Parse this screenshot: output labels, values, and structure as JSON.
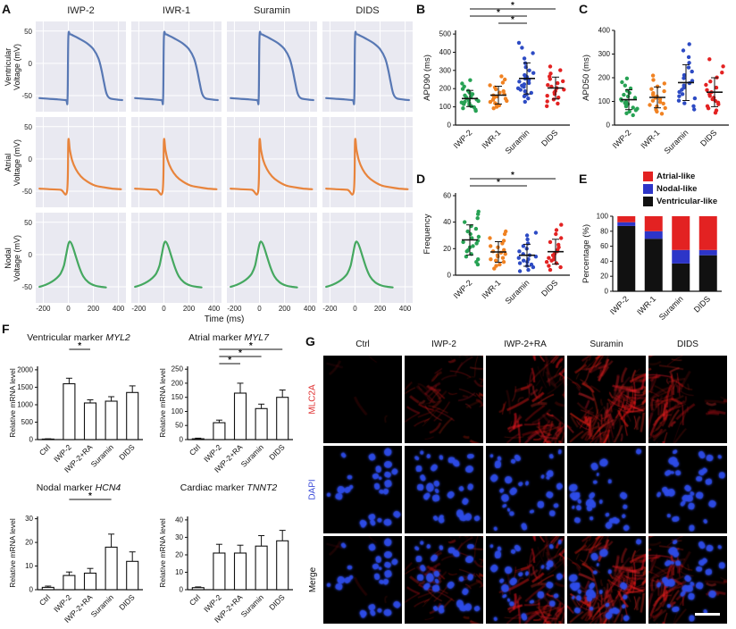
{
  "figure": {
    "background": "#ffffff"
  },
  "panelF": {
    "label": "F"
  },
  "panelG": {
    "label": "G",
    "columns": [
      "Ctrl",
      "IWP-2",
      "IWP-2+RA",
      "Suramin",
      "DIDS"
    ],
    "rows": [
      {
        "label": "MLC2A",
        "color": "#e03030",
        "channels": [
          "red"
        ]
      },
      {
        "label": "DAPI",
        "color": "#3b4bd8",
        "channels": [
          "blue"
        ]
      },
      {
        "label": "Merge",
        "color": "#111111",
        "channels": [
          "red",
          "blue"
        ]
      }
    ],
    "red_intensity": [
      0.05,
      0.6,
      0.9,
      0.95,
      0.75
    ],
    "nuclei_density": [
      0.85,
      1,
      1,
      1,
      1
    ],
    "scale_bar": true
  },
  "chart_data": [
    {
      "id": "A",
      "type": "line",
      "panel_label": "A",
      "columns": [
        "IWP-2",
        "IWR-1",
        "Suramin",
        "DIDS"
      ],
      "rows": [
        "Ventricular",
        "Atrial",
        "Nodal"
      ],
      "row_ylabel": "Voltage (mV)",
      "xlabel": "Time (ms)",
      "xticks": [
        -200,
        0,
        200,
        400
      ],
      "yticks": [
        50,
        0,
        -50
      ],
      "xlim": [
        -260,
        460
      ],
      "ylim": [
        -75,
        65
      ],
      "series": [
        {
          "row": "Ventricular",
          "color": "#5878b4",
          "points": [
            [
              -230,
              -54
            ],
            [
              -150,
              -55
            ],
            [
              -80,
              -56
            ],
            [
              -20,
              -57
            ],
            [
              -6,
              -56
            ],
            [
              0,
              40
            ],
            [
              14,
              45
            ],
            [
              40,
              43
            ],
            [
              90,
              38
            ],
            [
              150,
              31
            ],
            [
              200,
              22
            ],
            [
              240,
              8
            ],
            [
              265,
              -10
            ],
            [
              285,
              -30
            ],
            [
              305,
              -47
            ],
            [
              330,
              -54
            ],
            [
              380,
              -56
            ],
            [
              430,
              -57
            ]
          ]
        },
        {
          "row": "Atrial",
          "color": "#e8843c",
          "points": [
            [
              -230,
              -46
            ],
            [
              -150,
              -47
            ],
            [
              -60,
              -48
            ],
            [
              -10,
              -50
            ],
            [
              0,
              28
            ],
            [
              12,
              14
            ],
            [
              30,
              -2
            ],
            [
              60,
              -16
            ],
            [
              100,
              -27
            ],
            [
              150,
              -35
            ],
            [
              210,
              -41
            ],
            [
              280,
              -44
            ],
            [
              350,
              -46
            ],
            [
              420,
              -47
            ]
          ]
        },
        {
          "row": "Nodal",
          "color": "#45a860",
          "points": [
            [
              -230,
              -50
            ],
            [
              -180,
              -47
            ],
            [
              -130,
              -42
            ],
            [
              -90,
              -36
            ],
            [
              -60,
              -29
            ],
            [
              -35,
              -17
            ],
            [
              -15,
              2
            ],
            [
              0,
              16
            ],
            [
              14,
              20
            ],
            [
              34,
              13
            ],
            [
              60,
              -3
            ],
            [
              90,
              -21
            ],
            [
              120,
              -34
            ],
            [
              160,
              -43
            ],
            [
              210,
              -48
            ],
            [
              260,
              -50
            ],
            [
              300,
              -51
            ]
          ]
        }
      ]
    },
    {
      "id": "B",
      "type": "scatter",
      "panel_label": "B",
      "ylabel": "APD90 (ms)",
      "ylim": [
        0,
        520
      ],
      "yticks": [
        0,
        100,
        200,
        300,
        400,
        500
      ],
      "categories": [
        "IWP-2",
        "IWR-1",
        "Suramin",
        "DIDS"
      ],
      "colors": [
        "#27a254",
        "#f08222",
        "#2d4bc4",
        "#e32222"
      ],
      "groups": [
        [
          78,
          85,
          92,
          98,
          104,
          110,
          115,
          120,
          124,
          128,
          132,
          136,
          141,
          146,
          151,
          157,
          163,
          170,
          178,
          188,
          198,
          212,
          228,
          247
        ],
        [
          92,
          100,
          108,
          114,
          120,
          127,
          133,
          139,
          145,
          151,
          157,
          163,
          170,
          178,
          186,
          196,
          207,
          219,
          233,
          250,
          268
        ],
        [
          128,
          146,
          158,
          168,
          177,
          186,
          194,
          202,
          210,
          217,
          224,
          231,
          239,
          247,
          255,
          264,
          274,
          286,
          300,
          318,
          340,
          366,
          395,
          425,
          452
        ],
        [
          104,
          118,
          130,
          141,
          151,
          161,
          170,
          179,
          187,
          195,
          203,
          211,
          220,
          230,
          241,
          253,
          267,
          283,
          301,
          322
        ]
      ],
      "sig": [
        {
          "a": 0,
          "b": 3,
          "label": "*"
        },
        {
          "a": 0,
          "b": 2,
          "label": "*"
        },
        {
          "a": 1,
          "b": 2,
          "label": "*"
        }
      ]
    },
    {
      "id": "C",
      "type": "scatter",
      "panel_label": "C",
      "ylabel": "APD50 (ms)",
      "ylim": [
        0,
        400
      ],
      "yticks": [
        0,
        100,
        200,
        300,
        400
      ],
      "categories": [
        "IWP-2",
        "IWR-1",
        "Suramin",
        "DIDS"
      ],
      "colors": [
        "#27a254",
        "#f08222",
        "#2d4bc4",
        "#e32222"
      ],
      "groups": [
        [
          42,
          50,
          57,
          63,
          69,
          74,
          79,
          84,
          89,
          94,
          99,
          104,
          109,
          115,
          121,
          128,
          136,
          145,
          155,
          167,
          181,
          197
        ],
        [
          48,
          57,
          65,
          72,
          79,
          85,
          91,
          97,
          103,
          109,
          115,
          121,
          128,
          135,
          143,
          152,
          163,
          176,
          191,
          209
        ],
        [
          66,
          80,
          92,
          103,
          113,
          122,
          131,
          140,
          149,
          158,
          167,
          177,
          187,
          198,
          211,
          226,
          243,
          263,
          287,
          315,
          342
        ],
        [
          52,
          62,
          71,
          80,
          88,
          95,
          102,
          109,
          116,
          123,
          131,
          139,
          148,
          158,
          170,
          184,
          201,
          222,
          248,
          278
        ]
      ],
      "sig": []
    },
    {
      "id": "D",
      "type": "scatter",
      "panel_label": "D",
      "ylabel": "Frequency",
      "ylim": [
        0,
        62
      ],
      "yticks": [
        0,
        20,
        40,
        60
      ],
      "categories": [
        "IWP-2",
        "IWR-1",
        "Suramin",
        "DIDS"
      ],
      "colors": [
        "#27a254",
        "#f08222",
        "#2d4bc4",
        "#e32222"
      ],
      "groups": [
        [
          8,
          10,
          12,
          14,
          16,
          18,
          19,
          21,
          22,
          24,
          25,
          26,
          28,
          29,
          31,
          33,
          35,
          37,
          40,
          43,
          46,
          48
        ],
        [
          5,
          7,
          8,
          10,
          11,
          12,
          13,
          14,
          15,
          16,
          17,
          18,
          19,
          21,
          22,
          24,
          26,
          28,
          31,
          33
        ],
        [
          3,
          4,
          6,
          7,
          8,
          9,
          10,
          11,
          12,
          13,
          14,
          15,
          16,
          18,
          20,
          22,
          24,
          27,
          30,
          32
        ],
        [
          4,
          6,
          7,
          9,
          10,
          11,
          12,
          13,
          14,
          15,
          16,
          18,
          19,
          21,
          23,
          25,
          28,
          31,
          34,
          38
        ]
      ],
      "sig": [
        {
          "a": 0,
          "b": 3,
          "label": "*"
        },
        {
          "a": 0,
          "b": 2,
          "label": "*"
        }
      ]
    },
    {
      "id": "E",
      "type": "stacked_bar",
      "panel_label": "E",
      "ylabel": "Percentage (%)",
      "ylim": [
        0,
        100
      ],
      "yticks": [
        0,
        20,
        40,
        60,
        80,
        100
      ],
      "categories": [
        "IWP-2",
        "IWR-1",
        "Suramin",
        "DIDS"
      ],
      "legend": [
        {
          "label": "Atrial-like",
          "color": "#e32222"
        },
        {
          "label": "Nodal-like",
          "color": "#2d35c8"
        },
        {
          "label": "Ventricular-like",
          "color": "#111111"
        }
      ],
      "series": [
        {
          "name": "Ventricular-like",
          "color": "#111111",
          "values": [
            87,
            70,
            37,
            48
          ]
        },
        {
          "name": "Nodal-like",
          "color": "#2d35c8",
          "values": [
            5,
            10,
            18,
            7
          ]
        },
        {
          "name": "Atrial-like",
          "color": "#e32222",
          "values": [
            8,
            20,
            45,
            45
          ]
        }
      ]
    },
    {
      "id": "F1",
      "type": "bar",
      "title_prefix": "Ventricular marker ",
      "gene": "MYL2",
      "ylabel": "Relative mRNA level",
      "ylim": [
        0,
        2100
      ],
      "yticks": [
        0,
        500,
        1000,
        1500,
        2000
      ],
      "categories": [
        "Ctrl",
        "IWP-2",
        "IWP-2+RA",
        "Suramin",
        "DIDS"
      ],
      "values": [
        15,
        1600,
        1050,
        1100,
        1350
      ],
      "errors": [
        8,
        160,
        90,
        130,
        190
      ],
      "sig": [
        {
          "a": 1,
          "b": 2,
          "label": "*"
        }
      ]
    },
    {
      "id": "F2",
      "type": "bar",
      "title_prefix": "Atrial marker ",
      "gene": "MYL7",
      "ylabel": "Relative mRNA level",
      "ylim": [
        0,
        260
      ],
      "yticks": [
        0,
        50,
        100,
        150,
        200,
        250
      ],
      "categories": [
        "Ctrl",
        "IWP-2",
        "IWP-2+RA",
        "Suramin",
        "DIDS"
      ],
      "values": [
        3,
        60,
        165,
        110,
        150
      ],
      "errors": [
        2,
        9,
        35,
        16,
        26
      ],
      "sig": [
        {
          "a": 1,
          "b": 4,
          "label": "*"
        },
        {
          "a": 1,
          "b": 3,
          "label": "*"
        },
        {
          "a": 1,
          "b": 2,
          "label": "*"
        }
      ]
    },
    {
      "id": "F3",
      "type": "bar",
      "title_prefix": "Nodal marker ",
      "gene": "HCN4",
      "ylabel": "Relative mRNA level",
      "ylim": [
        0,
        31
      ],
      "yticks": [
        0,
        10,
        20,
        30
      ],
      "categories": [
        "Ctrl",
        "IWP-2",
        "IWP-2+RA",
        "Suramin",
        "DIDS"
      ],
      "values": [
        1,
        6,
        7,
        18,
        12
      ],
      "errors": [
        0.5,
        1.5,
        2,
        5.5,
        4
      ],
      "sig": [
        {
          "a": 1,
          "b": 3,
          "label": "*"
        }
      ]
    },
    {
      "id": "F4",
      "type": "bar",
      "title_prefix": "Cardiac marker ",
      "gene": "TNNT2",
      "ylabel": "Relative mRNA level",
      "ylim": [
        0,
        42
      ],
      "yticks": [
        0,
        10,
        20,
        30,
        40
      ],
      "categories": [
        "Ctrl",
        "IWP-2",
        "IWP-2+RA",
        "Suramin",
        "DIDS"
      ],
      "values": [
        1.2,
        21,
        21,
        25,
        28
      ],
      "errors": [
        0.4,
        5,
        4.5,
        6,
        6
      ],
      "sig": []
    }
  ]
}
